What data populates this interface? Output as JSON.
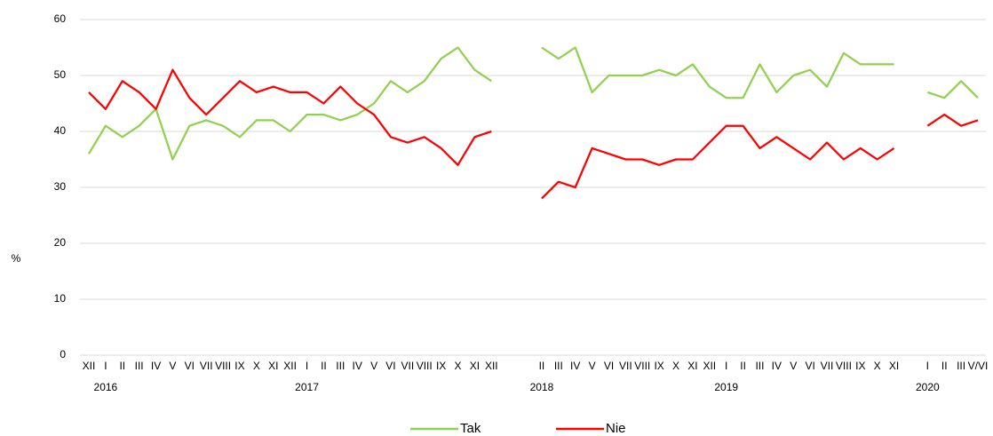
{
  "chart_data": {
    "type": "line",
    "ylabel": "%",
    "categories": [
      "XII",
      "I",
      "II",
      "III",
      "IV",
      "V",
      "VI",
      "VII",
      "VIII",
      "IX",
      "X",
      "XI",
      "XII",
      "I",
      "II",
      "III",
      "IV",
      "V",
      "VI",
      "VII",
      "VIII",
      "IX",
      "X",
      "XI",
      "XII",
      null,
      null,
      "II",
      "III",
      "IV",
      "V",
      "VI",
      "VII",
      "VIII",
      "IX",
      "X",
      "XI",
      "XII",
      "I",
      "II",
      "III",
      "IV",
      "V",
      "VI",
      "VII",
      "VIII",
      "IX",
      "X",
      "XI",
      null,
      "I",
      "II",
      "III",
      "V/VI"
    ],
    "year_labels": [
      null,
      "2016",
      null,
      null,
      null,
      null,
      null,
      null,
      null,
      null,
      null,
      null,
      null,
      "2017",
      null,
      null,
      null,
      null,
      null,
      null,
      null,
      null,
      null,
      null,
      null,
      null,
      null,
      "2018",
      null,
      null,
      null,
      null,
      null,
      null,
      null,
      null,
      null,
      null,
      "2019",
      null,
      null,
      null,
      null,
      null,
      null,
      null,
      null,
      null,
      null,
      null,
      "2020",
      null,
      null,
      null
    ],
    "series": [
      {
        "name": "Tak",
        "color": "#92d050",
        "values": [
          36,
          41,
          39,
          41,
          44,
          35,
          41,
          42,
          41,
          39,
          42,
          42,
          40,
          43,
          43,
          42,
          43,
          45,
          49,
          47,
          49,
          53,
          55,
          51,
          49,
          null,
          null,
          55,
          53,
          55,
          47,
          50,
          50,
          50,
          51,
          50,
          52,
          48,
          46,
          46,
          52,
          47,
          50,
          51,
          48,
          54,
          52,
          52,
          52,
          null,
          47,
          46,
          49,
          46
        ]
      },
      {
        "name": "Nie",
        "color": "#ff0000",
        "values": [
          47,
          44,
          49,
          47,
          44,
          51,
          46,
          43,
          46,
          49,
          47,
          48,
          47,
          47,
          45,
          48,
          45,
          43,
          39,
          38,
          39,
          37,
          34,
          39,
          40,
          null,
          null,
          28,
          31,
          30,
          37,
          36,
          35,
          35,
          34,
          35,
          35,
          38,
          41,
          41,
          37,
          39,
          37,
          35,
          38,
          35,
          37,
          35,
          37,
          null,
          41,
          43,
          41,
          42
        ]
      }
    ],
    "ylim": [
      0,
      60
    ],
    "yticks": [
      0,
      10,
      20,
      30,
      40,
      50,
      60
    ],
    "grid": true,
    "legend": "bottom"
  }
}
